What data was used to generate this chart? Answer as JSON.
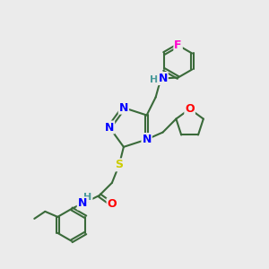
{
  "bg_color": "#ebebeb",
  "atom_colors": {
    "N": "#0000ff",
    "O": "#ff0000",
    "S": "#cccc00",
    "F": "#ff00cc",
    "H_label": "#4a9a9a"
  },
  "bond_color": "#3a6a3a",
  "bond_width": 1.5
}
